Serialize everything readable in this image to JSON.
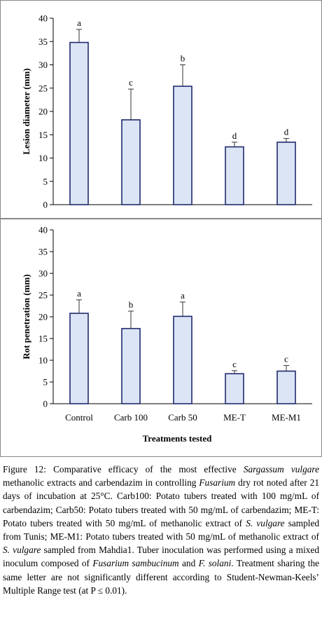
{
  "chart_data": [
    {
      "type": "bar",
      "ylabel": "Lesion diameter (mm)",
      "xlabel": "",
      "categories": [
        "Control",
        "Carb 100",
        "Carb 50",
        "ME-T",
        "ME-M1"
      ],
      "values": [
        34.8,
        18.2,
        25.4,
        12.4,
        13.4
      ],
      "errors": [
        2.8,
        6.6,
        4.6,
        1.0,
        0.8
      ],
      "letters": [
        "a",
        "c",
        "b",
        "d",
        "d"
      ],
      "ylim": [
        0,
        40
      ],
      "yticks": [
        0,
        5,
        10,
        15,
        20,
        25,
        30,
        35,
        40
      ],
      "show_category_labels": false,
      "bar_color": "#dbe5f5",
      "bar_edge": "#1f2a6e"
    },
    {
      "type": "bar",
      "ylabel": "Rot penetration (mm)",
      "xlabel": "Treatments tested",
      "categories": [
        "Control",
        "Carb 100",
        "Carb 50",
        "ME-T",
        "ME-M1"
      ],
      "values": [
        20.8,
        17.3,
        20.1,
        6.9,
        7.5
      ],
      "errors": [
        3.1,
        4.0,
        3.3,
        0.7,
        1.3
      ],
      "letters": [
        "a",
        "b",
        "a",
        "c",
        "c"
      ],
      "ylim": [
        0,
        40
      ],
      "yticks": [
        0,
        5,
        10,
        15,
        20,
        25,
        30,
        35,
        40
      ],
      "show_category_labels": true,
      "bar_color": "#dbe5f5",
      "bar_edge": "#1f2a6e"
    }
  ],
  "caption": {
    "label": "Figure 12:",
    "parts": [
      {
        "t": " Comparative efficacy of the most effective "
      },
      {
        "t": "Sargassum vulgare",
        "i": true
      },
      {
        "t": " methanolic extracts and carbendazim in controlling "
      },
      {
        "t": "Fusarium",
        "i": true
      },
      {
        "t": " dry rot noted after 21 days of incubation at 25°C. Carb100: Potato tubers treated with 100 mg/mL of carbendazim; Carb50: Potato tubers treated with 50 mg/mL of carbendazim; ME-T: Potato tubers treated with 50 mg/mL of methanolic extract of "
      },
      {
        "t": "S. vulgare",
        "i": true
      },
      {
        "t": " sampled from Tunis; ME-M1: Potato tubers treated with 50 mg/mL of methanolic extract of "
      },
      {
        "t": "S. vulgare",
        "i": true
      },
      {
        "t": " sampled from Mahdia1. Tuber inoculation was performed using a mixed inoculum composed of "
      },
      {
        "t": "Fusarium sambucinum",
        "i": true
      },
      {
        "t": " and "
      },
      {
        "t": "F. solani",
        "i": true
      },
      {
        "t": ". Treatment sharing the same letter are not significantly different according to Student-Newman-Keels’ Multiple Range test (at P ≤ 0.01)."
      }
    ]
  }
}
